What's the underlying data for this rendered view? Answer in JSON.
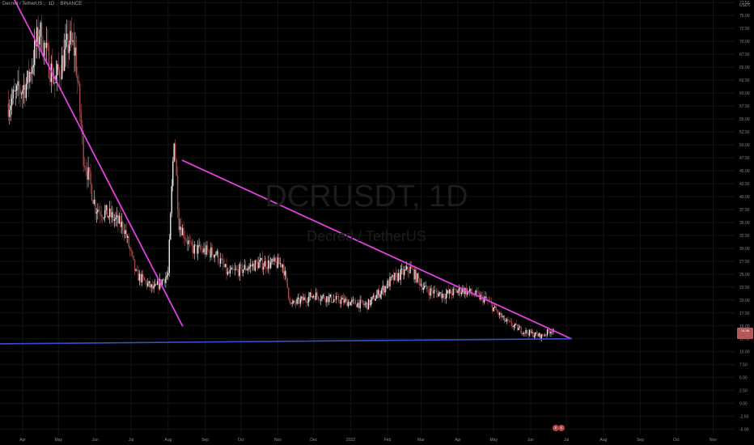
{
  "header": {
    "pair": "Decred / TetherUS",
    "interval": "1D",
    "exchange": "BINANCE"
  },
  "watermark": {
    "symbol": "DCRUSDT, 1D",
    "name": "Decred / TetherUS"
  },
  "price_scale": {
    "currency": "USDT",
    "ticks": [
      "77.50",
      "75.00",
      "72.50",
      "70.00",
      "67.50",
      "65.00",
      "62.50",
      "60.00",
      "57.50",
      "55.00",
      "52.50",
      "50.00",
      "47.50",
      "45.00",
      "42.50",
      "40.00",
      "37.50",
      "35.00",
      "32.50",
      "30.00",
      "27.50",
      "25.00",
      "22.50",
      "20.00",
      "17.50",
      "15.00",
      "12.50",
      "10.00",
      "7.50",
      "5.00",
      "2.50",
      "0.00",
      "-2.50",
      "-5.00"
    ]
  },
  "last_price": {
    "value": "14.46",
    "countdown": "",
    "color": "#b2585a"
  },
  "events": [
    {
      "label": "E"
    },
    {
      "label": "E"
    }
  ],
  "colors": {
    "up": "#e8e8e8",
    "down": "#a8484a",
    "trendline": "#e040e0",
    "support": "#3050c8",
    "grid": "#141414"
  },
  "chart_data": {
    "type": "candlestick",
    "x_axis": {
      "tick_labels": [
        "Apr",
        "May",
        "Jun",
        "Jul",
        "Aug",
        "Sep",
        "Oct",
        "Nov",
        "Dec",
        "2022",
        "Feb",
        "Mar",
        "Apr",
        "May",
        "Jun",
        "Jul",
        "Aug",
        "Sep",
        "Oct",
        "Nov"
      ]
    },
    "ylim": [
      -6,
      78
    ],
    "grid": true,
    "series_close_approx": [
      {
        "date": "2021-03-20",
        "close": 58
      },
      {
        "date": "2021-04-05",
        "close": 62
      },
      {
        "date": "2021-04-15",
        "close": 72
      },
      {
        "date": "2021-04-28",
        "close": 62
      },
      {
        "date": "2021-05-10",
        "close": 70
      },
      {
        "date": "2021-05-15",
        "close": 68
      },
      {
        "date": "2021-05-22",
        "close": 48
      },
      {
        "date": "2021-06-01",
        "close": 38
      },
      {
        "date": "2021-06-15",
        "close": 36
      },
      {
        "date": "2021-06-25",
        "close": 34
      },
      {
        "date": "2021-07-05",
        "close": 25
      },
      {
        "date": "2021-07-20",
        "close": 22
      },
      {
        "date": "2021-08-01",
        "close": 25
      },
      {
        "date": "2021-08-06",
        "close": 52
      },
      {
        "date": "2021-08-10",
        "close": 35
      },
      {
        "date": "2021-08-20",
        "close": 30
      },
      {
        "date": "2021-09-10",
        "close": 29
      },
      {
        "date": "2021-09-20",
        "close": 25
      },
      {
        "date": "2021-10-15",
        "close": 27
      },
      {
        "date": "2021-11-05",
        "close": 27
      },
      {
        "date": "2021-11-12",
        "close": 19
      },
      {
        "date": "2021-12-01",
        "close": 21
      },
      {
        "date": "2021-12-20",
        "close": 20
      },
      {
        "date": "2022-01-15",
        "close": 19
      },
      {
        "date": "2022-02-05",
        "close": 24
      },
      {
        "date": "2022-02-20",
        "close": 26
      },
      {
        "date": "2022-03-05",
        "close": 22
      },
      {
        "date": "2022-03-20",
        "close": 21
      },
      {
        "date": "2022-04-05",
        "close": 22
      },
      {
        "date": "2022-04-25",
        "close": 20
      },
      {
        "date": "2022-05-10",
        "close": 16
      },
      {
        "date": "2022-05-25",
        "close": 14
      },
      {
        "date": "2022-06-10",
        "close": 13
      },
      {
        "date": "2022-06-20",
        "close": 14.46
      }
    ],
    "drawings": [
      {
        "type": "trendline",
        "from": {
          "date": "2021-03-23",
          "price": 79
        },
        "to": {
          "date": "2021-08-13",
          "price": 15
        }
      },
      {
        "type": "trendline",
        "from": {
          "date": "2021-08-13",
          "price": 47
        },
        "to": {
          "date": "2022-07-05",
          "price": 12.5
        }
      },
      {
        "type": "horizontal",
        "from": {
          "date": "2021-03-01",
          "price": 11.5
        },
        "to": {
          "date": "2022-07-05",
          "price": 12.5
        }
      }
    ]
  }
}
